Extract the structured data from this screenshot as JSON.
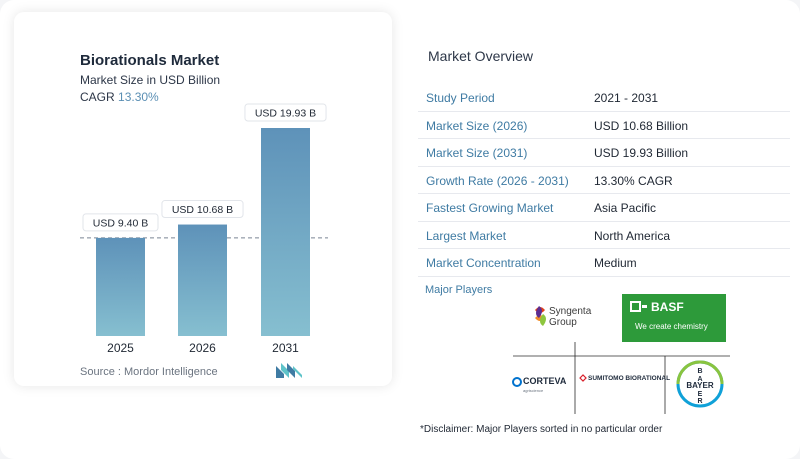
{
  "chart_data": {
    "type": "bar",
    "title": "Biorationals Market",
    "subtitle": "Market Size in USD Billion",
    "cagr_label": "CAGR",
    "cagr_value": "13.30%",
    "categories": [
      "2025",
      "2026",
      "2031"
    ],
    "values": [
      9.4,
      10.68,
      19.93
    ],
    "data_labels": [
      "USD 9.40 B",
      "USD 10.68 B",
      "USD 19.93 B"
    ],
    "ylim": [
      0,
      20
    ],
    "grid": false,
    "bar_color_top": "#5e92b9",
    "bar_color_bottom": "#86bfd0"
  },
  "source": "Source :  Mordor Intelligence",
  "overview": {
    "title": "Market Overview",
    "rows": [
      {
        "label": "Study Period",
        "value": "2021 - 2031"
      },
      {
        "label": "Market Size (2026)",
        "value": "USD 10.68 Billion"
      },
      {
        "label": "Market Size (2031)",
        "value": "USD 19.93 Billion"
      },
      {
        "label": "Growth Rate (2026 - 2031)",
        "value": "13.30% CAGR"
      },
      {
        "label": "Fastest Growing Market",
        "value": "Asia Pacific"
      },
      {
        "label": "Largest Market",
        "value": "North America"
      },
      {
        "label": "Market Concentration",
        "value": "Medium"
      }
    ]
  },
  "players": {
    "title": "Major Players",
    "syngenta_line1": "Syngenta",
    "syngenta_line2": "Group",
    "basf_name": "BASF",
    "basf_tagline": "We create chemistry",
    "corteva_name": "CORTEVA",
    "corteva_sub": "agriscience",
    "sumitomo_name": "SUMITOMO BIORATIONAL",
    "bayer_name": "BAYER",
    "disclaimer": "*Disclaimer: Major Players sorted in no particular order"
  },
  "colors": {
    "accent": "#3f7ba3",
    "basf_green": "#2d9a3a",
    "bayer_blue": "#10a1d8",
    "bayer_green": "#8ac43f"
  }
}
